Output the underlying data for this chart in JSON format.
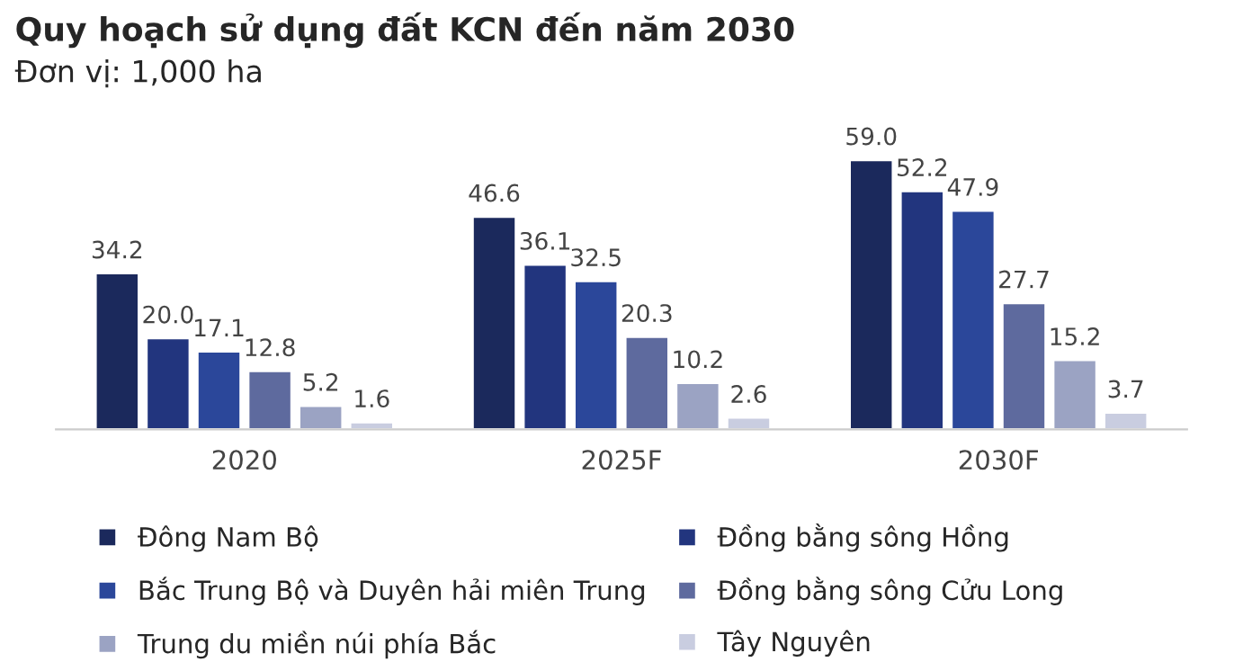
{
  "chart_data": {
    "type": "bar",
    "title": "Quy hoạch sử dụng đất KCN đến năm 2030",
    "subtitle": "Đơn vị: 1,000 ha",
    "categories": [
      "2020",
      "2025F",
      "2030F"
    ],
    "series": [
      {
        "name": "Đông Nam Bộ",
        "color": "#1b295c",
        "values": [
          34.2,
          46.6,
          59.0
        ],
        "value_labels": [
          "34.2",
          "46.6",
          "59.0"
        ]
      },
      {
        "name": "Đồng bằng sông Hồng",
        "color": "#22357e",
        "values": [
          20.0,
          36.1,
          52.2
        ],
        "value_labels": [
          "20.0",
          "36.1",
          "52.2"
        ]
      },
      {
        "name": "Bắc Trung Bộ và Duyên hải miên Trung",
        "color": "#2b479a",
        "values": [
          17.1,
          32.5,
          47.9
        ],
        "value_labels": [
          "17.1",
          "32.5",
          "47.9"
        ]
      },
      {
        "name": "Đồng bằng sông Cửu Long",
        "color": "#5e6a9e",
        "values": [
          12.8,
          20.3,
          27.7
        ],
        "value_labels": [
          "12.8",
          "20.3",
          "27.7"
        ]
      },
      {
        "name": "Trung du miền núi phía Bắc",
        "color": "#9ba3c3",
        "values": [
          5.2,
          10.2,
          15.2
        ],
        "value_labels": [
          "5.2",
          "10.2",
          "15.2"
        ]
      },
      {
        "name": "Tây Nguyên",
        "color": "#c9cde0",
        "values": [
          1.6,
          2.6,
          3.7
        ],
        "value_labels": [
          "1.6",
          "2.6",
          "3.7"
        ]
      }
    ],
    "tick_labels": "x",
    "grid": false,
    "legend": "bottom"
  }
}
